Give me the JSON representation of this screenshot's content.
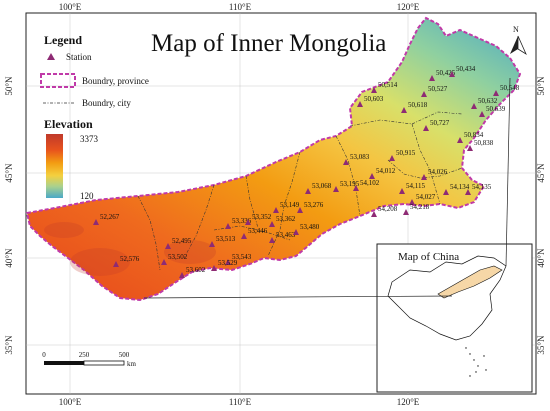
{
  "title": "Map of Inner Mongolia",
  "legend": {
    "heading": "Legend",
    "station": "Station",
    "boundary_province": "Boundry, province",
    "boundary_city": "Boundry, city",
    "elevation_heading": "Elevation",
    "elevation_max": "3373",
    "elevation_min": "120",
    "ramp_colors": [
      "#c0392b",
      "#e8531d",
      "#f39c12",
      "#f4d03f",
      "#a9d18e",
      "#4aa8c7"
    ]
  },
  "axes": {
    "top": [
      "100°E",
      "110°E",
      "120°E"
    ],
    "bottom": [
      "100°E",
      "110°E",
      "120°E"
    ],
    "left": [
      "50°N",
      "45°N",
      "40°N",
      "35°N"
    ],
    "right": [
      "50°N",
      "45°N",
      "40°N",
      "35°N"
    ]
  },
  "north_arrow": "N",
  "scale_bar": {
    "labels": [
      "0",
      "250",
      "500"
    ],
    "unit": "km"
  },
  "inset": {
    "title": "Map of China"
  },
  "stations": [
    {
      "label": "50,425"
    },
    {
      "label": "50,434"
    },
    {
      "label": "50,514"
    },
    {
      "label": "50,527"
    },
    {
      "label": "50,548"
    },
    {
      "label": "50,603"
    },
    {
      "label": "50,618"
    },
    {
      "label": "50,632"
    },
    {
      "label": "50,639"
    },
    {
      "label": "50,727"
    },
    {
      "label": "50,834"
    },
    {
      "label": "50,838"
    },
    {
      "label": "50,915"
    },
    {
      "label": "53,083"
    },
    {
      "label": "54,012"
    },
    {
      "label": "53,068"
    },
    {
      "label": "53,195"
    },
    {
      "label": "54,102"
    },
    {
      "label": "54,026"
    },
    {
      "label": "54,115"
    },
    {
      "label": "54,134"
    },
    {
      "label": "54,135"
    },
    {
      "label": "53,276"
    },
    {
      "label": "54,027"
    },
    {
      "label": "53,149"
    },
    {
      "label": "54,208"
    },
    {
      "label": "54,218"
    },
    {
      "label": "52,267"
    },
    {
      "label": "53,336"
    },
    {
      "label": "53,352"
    },
    {
      "label": "53,362"
    },
    {
      "label": "53,446"
    },
    {
      "label": "53,463"
    },
    {
      "label": "53,480"
    },
    {
      "label": "52,495"
    },
    {
      "label": "53,513"
    },
    {
      "label": "53,502"
    },
    {
      "label": "53,543"
    },
    {
      "label": "52,576"
    },
    {
      "label": "53,529"
    },
    {
      "label": "53,602"
    }
  ]
}
